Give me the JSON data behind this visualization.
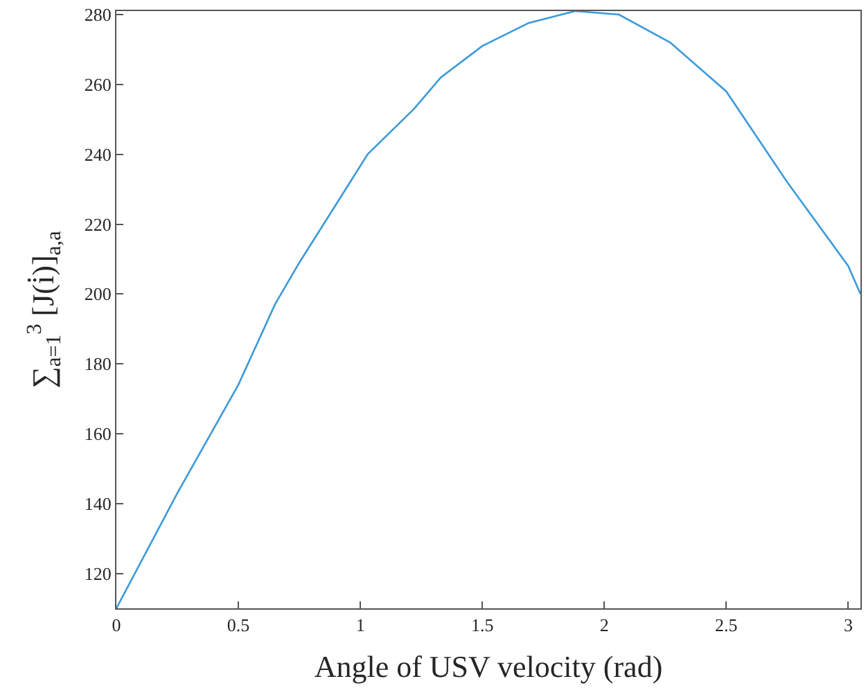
{
  "chart_data": {
    "type": "line",
    "xlabel": "Angle of USV velocity (rad)",
    "ylabel": "∑$_{a=1}$$^{3}$ [J(i̇)]$_{a,a}$",
    "x": [
      0,
      0.25,
      0.5,
      0.65,
      0.75,
      1.03,
      1.22,
      1.33,
      1.5,
      1.69,
      1.88,
      2.06,
      2.27,
      2.5,
      2.75,
      3,
      3.05
    ],
    "series": [
      {
        "color": "#3b9ad9",
        "values": [
          110,
          143,
          174,
          197,
          209,
          240,
          253,
          262,
          271,
          277.6,
          281,
          280,
          272,
          258,
          232,
          208,
          200
        ]
      }
    ],
    "xlim": [
      0,
      3.05
    ],
    "ylim": [
      110,
      281
    ],
    "xticks": [
      0,
      0.5,
      1,
      1.5,
      2,
      2.5,
      3
    ],
    "yticks": [
      120,
      140,
      160,
      180,
      200,
      220,
      240,
      260,
      280
    ],
    "legend": false,
    "marker": "none",
    "line_style": "solid"
  }
}
